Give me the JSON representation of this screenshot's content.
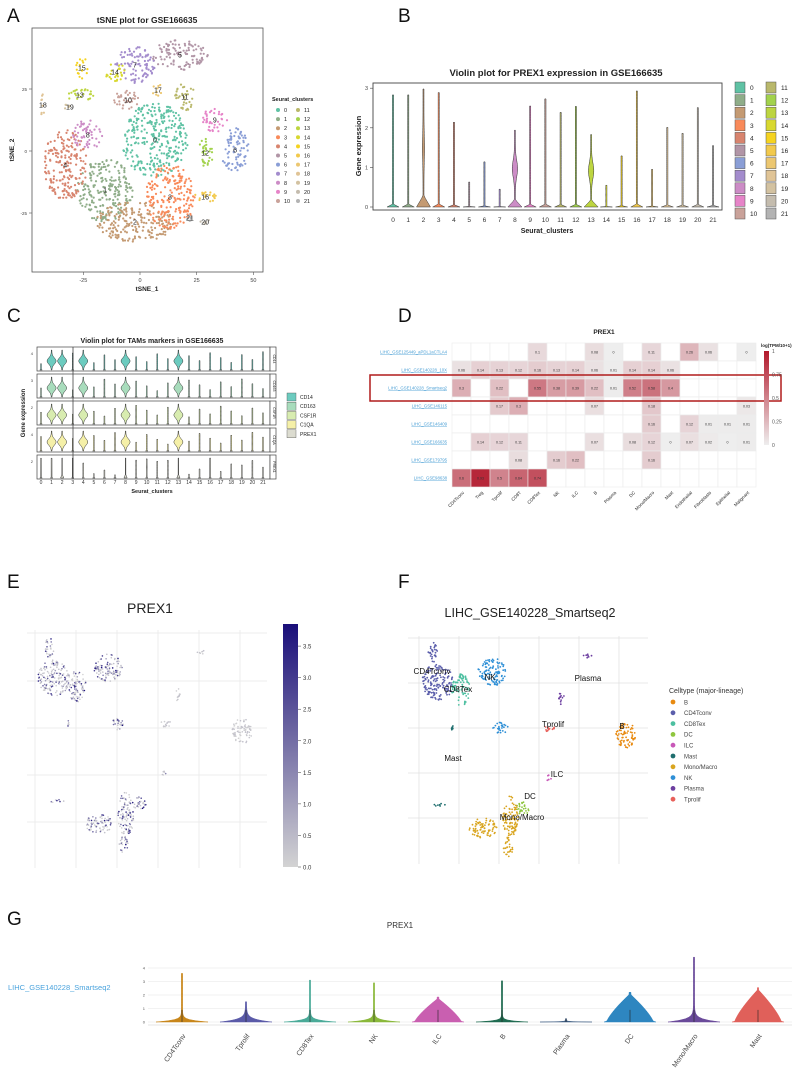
{
  "panel_labels": {
    "a": "A",
    "b": "B",
    "c": "C",
    "d": "D",
    "e": "E",
    "f": "F",
    "g": "G"
  },
  "chart_data": [
    {
      "panel": "A",
      "type": "scatter",
      "title": "tSNE plot for GSE166635",
      "xlabel": "tSNE_1",
      "ylabel": "tSNE_2",
      "xticks": [
        -25,
        0,
        25,
        50
      ],
      "yticks": [
        25,
        0,
        -25
      ],
      "legend_title": "Seurat_clusters",
      "legend_placement": "right",
      "clusters": [
        {
          "label": "0",
          "color": "#5fc2a4",
          "center": [
            6.6,
            4.4
          ],
          "radius": [
            14.5,
            14.9
          ]
        },
        {
          "label": "1",
          "color": "#8fad89",
          "center": [
            -15.4,
            -15.7
          ],
          "radius": [
            12.3,
            12.9
          ]
        },
        {
          "label": "2",
          "color": "#c49a72",
          "center": [
            -2.2,
            -28.6
          ],
          "radius": [
            17.6,
            8.1
          ]
        },
        {
          "label": "3",
          "color": "#f98a5a",
          "center": [
            13.2,
            -18.5
          ],
          "radius": [
            11,
            12.9
          ]
        },
        {
          "label": "4",
          "color": "#d8846e",
          "center": [
            -33,
            -5.6
          ],
          "radius": [
            9.7,
            14.1
          ]
        },
        {
          "label": "5",
          "color": "#b195a6",
          "center": [
            17.6,
            38.7
          ],
          "radius": [
            12.3,
            6
          ]
        },
        {
          "label": "6",
          "color": "#8a9ed6",
          "center": [
            41.9,
            0.4
          ],
          "radius": [
            6.2,
            8.9
          ]
        },
        {
          "label": "7",
          "color": "#a38ccd",
          "center": [
            -2.2,
            34.7
          ],
          "radius": [
            8.8,
            7.3
          ]
        },
        {
          "label": "8",
          "color": "#cc8cc6",
          "center": [
            -23,
            6.5
          ],
          "radius": [
            6.6,
            6
          ]
        },
        {
          "label": "9",
          "color": "#e684c8",
          "center": [
            33,
            12.5
          ],
          "radius": [
            5.7,
            4.8
          ]
        },
        {
          "label": "10",
          "color": "#c9a29a",
          "center": [
            -5.3,
            20.6
          ],
          "radius": [
            6.2,
            4
          ]
        },
        {
          "label": "11",
          "color": "#b9b86b",
          "center": [
            19.8,
            21.8
          ],
          "radius": [
            4.4,
            5.6
          ]
        },
        {
          "label": "12",
          "color": "#a2d24c",
          "center": [
            28.7,
            -0.8
          ],
          "radius": [
            3.5,
            6
          ]
        },
        {
          "label": "13",
          "color": "#bdd540",
          "center": [
            -26.5,
            22.6
          ],
          "radius": [
            6.2,
            2.8
          ]
        },
        {
          "label": "14",
          "color": "#d8d830",
          "center": [
            -11,
            31.9
          ],
          "radius": [
            4.4,
            4
          ]
        },
        {
          "label": "15",
          "color": "#f5d320",
          "center": [
            -25.6,
            33.5
          ],
          "radius": [
            2.6,
            4.4
          ]
        },
        {
          "label": "16",
          "color": "#f2c94c",
          "center": [
            28.7,
            -18.5
          ],
          "radius": [
            5.3,
            2.4
          ]
        },
        {
          "label": "17",
          "color": "#ecc771",
          "center": [
            7.9,
            24.6
          ],
          "radius": [
            2.6,
            2.4
          ]
        },
        {
          "label": "18",
          "color": "#e0c496",
          "center": [
            -42.8,
            18.5
          ],
          "radius": [
            0.9,
            6
          ]
        },
        {
          "label": "19",
          "color": "#d3c2a1",
          "center": [
            -30.9,
            17.7
          ],
          "radius": [
            3.5,
            1.2
          ]
        },
        {
          "label": "20",
          "color": "#c4bcae",
          "center": [
            28.7,
            -28.6
          ],
          "radius": [
            2.2,
            1.2
          ]
        },
        {
          "label": "21",
          "color": "#b3b3b3",
          "center": [
            22,
            -27
          ],
          "radius": [
            1.3,
            1.2
          ]
        }
      ]
    },
    {
      "panel": "B",
      "type": "violin",
      "title": "Violin plot for PREX1 expression in GSE166635",
      "xlabel": "Seurat_clusters",
      "ylabel": "Gene expression",
      "yticks": [
        0,
        1,
        2,
        3
      ],
      "categories": [
        "0",
        "1",
        "2",
        "3",
        "4",
        "5",
        "6",
        "7",
        "8",
        "9",
        "10",
        "11",
        "12",
        "13",
        "14",
        "15",
        "16",
        "17",
        "18",
        "19",
        "20",
        "21"
      ],
      "max_values": [
        2.83,
        2.83,
        2.98,
        2.89,
        2.14,
        0.63,
        1.14,
        0.45,
        1.94,
        2.55,
        2.73,
        2.39,
        2.54,
        1.83,
        0.55,
        1.29,
        2.93,
        0.95,
        2.01,
        1.86,
        2.51,
        1.55
      ],
      "expressing_clusters": [
        "2",
        "8",
        "13"
      ]
    },
    {
      "panel": "C",
      "type": "violin",
      "title": "Violin plot for TAMs markers in GSE166635",
      "xlabel": "Seurat_clusters",
      "ylabel": "Gene expression",
      "genes": [
        {
          "name": "CD14",
          "color": "#6ccbbf",
          "ytick": "4"
        },
        {
          "name": "CD163",
          "color": "#a8dcbc",
          "ytick": "3"
        },
        {
          "name": "CSF1R",
          "color": "#d8ecb0",
          "ytick": "2"
        },
        {
          "name": "C1QA",
          "color": "#f5f0a8",
          "ytick": "4"
        },
        {
          "name": "PREX1",
          "color": "#dcdcd0",
          "ytick": "2"
        }
      ],
      "expressing_clusters": [
        "1",
        "2",
        "4",
        "8",
        "13"
      ]
    },
    {
      "panel": "D",
      "type": "heatmap",
      "title": "PREX1",
      "rows": [
        "LIHC_GSE125449_aPDL1aCTLA4",
        "LIHC_GSE140228_10X",
        "LIHC_GSE140228_Smartseq2",
        "LIHC_GSE146115",
        "LIHC_GSE146409",
        "LIHC_GSE166635",
        "LIHC_GSE179795",
        "LIHC_GSE98638"
      ],
      "columns": [
        "CD4Tconv",
        "Treg",
        "Tprolif",
        "CD8T",
        "CD8Tex",
        "NK",
        "ILC",
        "B",
        "Plasma",
        "DC",
        "Mono/Macro",
        "Mast",
        "Endothelial",
        "Fibroblasts",
        "Epithelial",
        "Malignant"
      ],
      "values": [
        [
          null,
          null,
          null,
          null,
          0.1,
          null,
          null,
          0.08,
          0,
          null,
          0.11,
          null,
          0.26,
          0.06,
          null,
          0
        ],
        [
          0.06,
          0.14,
          0.13,
          0.12,
          0.16,
          0.13,
          0.14,
          0.06,
          0.01,
          0.14,
          0.14,
          0.06,
          null,
          null,
          null,
          null
        ],
        [
          0.3,
          null,
          0.22,
          null,
          0.55,
          0.38,
          0.39,
          0.22,
          0.01,
          0.52,
          0.58,
          0.4,
          null,
          null,
          null,
          null
        ],
        [
          null,
          null,
          0.17,
          0.3,
          null,
          null,
          null,
          0.07,
          null,
          null,
          0.18,
          null,
          null,
          null,
          null,
          0.03
        ],
        [
          null,
          null,
          null,
          null,
          null,
          null,
          null,
          null,
          null,
          null,
          0.16,
          null,
          0.12,
          0.01,
          0.01,
          0.01
        ],
        [
          null,
          0.14,
          0.12,
          0.11,
          null,
          null,
          null,
          0.07,
          null,
          0.08,
          0.12,
          0,
          0.07,
          0.02,
          0,
          0.01
        ],
        [
          null,
          null,
          null,
          0.08,
          null,
          0.16,
          0.22,
          null,
          null,
          null,
          0.16,
          null,
          null,
          null,
          null,
          null
        ],
        [
          0.6,
          0.93,
          0.5,
          0.64,
          0.74,
          null,
          null,
          null,
          null,
          null,
          null,
          null,
          null,
          null,
          null,
          null
        ]
      ],
      "colorbar_title": "log(TPM/10+1)",
      "colorbar_ticks": [
        "1",
        "0.75",
        "0.5",
        "0.25",
        "0"
      ],
      "colorbar_range": [
        0,
        1
      ],
      "highlighted_row": "LIHC_GSE140228_Smartseq2",
      "colors": {
        "low": "#eeeeee",
        "high": "#b2182b",
        "highlight": "#b01c1c",
        "link": "#4a9fd5"
      }
    },
    {
      "panel": "E",
      "type": "scatter",
      "title": "PREX1",
      "colorbar_ticks": [
        "0.0",
        "0.5",
        "1.0",
        "1.5",
        "2.0",
        "2.5",
        "3.0",
        "3.5"
      ],
      "colorbar_range": [
        0,
        3.85
      ],
      "colors": {
        "low": "#d3d3d3",
        "high": "#1a0f7a"
      }
    },
    {
      "panel": "F",
      "type": "scatter",
      "title": "LIHC_GSE140228_Smartseq2",
      "legend_title": "Celltype (major-lineage)",
      "legend_placement": "right",
      "celltypes": [
        {
          "name": "B",
          "color": "#e88a10"
        },
        {
          "name": "CD4Tconv",
          "color": "#5b5eab"
        },
        {
          "name": "CD8Tex",
          "color": "#4cbfa0"
        },
        {
          "name": "DC",
          "color": "#8fc63f"
        },
        {
          "name": "ILC",
          "color": "#c858b8"
        },
        {
          "name": "Mast",
          "color": "#1f6e6e"
        },
        {
          "name": "Mono/Macro",
          "color": "#d9a520"
        },
        {
          "name": "NK",
          "color": "#2e8fd6"
        },
        {
          "name": "Plasma",
          "color": "#6d3fa0"
        },
        {
          "name": "Tprolif",
          "color": "#e8605a"
        }
      ]
    },
    {
      "panel": "G",
      "type": "violin",
      "title": "PREX1",
      "dataset_label": "LIHC_GSE140228_Smartseq2",
      "yticks": [
        "0",
        "1",
        "2",
        "3",
        "4"
      ],
      "categories": [
        "CD4Tconv",
        "Tprolif",
        "CD8Tex",
        "NK",
        "ILC",
        "B",
        "Plasma",
        "DC",
        "Mono/Macro",
        "Mast"
      ],
      "colors": [
        "#c8861a",
        "#5a5aa8",
        "#4aaa98",
        "#8ab83a",
        "#c95fb0",
        "#1f6b50",
        "#3a5a80",
        "#2e86c0",
        "#6a4a9a",
        "#e0605a"
      ],
      "max_values": [
        3.6,
        1.5,
        3.1,
        2.9,
        1.85,
        3.05,
        0.25,
        2.2,
        4.8,
        2.55
      ],
      "spread": [
        0.3,
        0.45,
        0.3,
        0.3,
        0.9,
        0.2,
        0.05,
        1.1,
        0.45,
        0.7
      ]
    }
  ]
}
